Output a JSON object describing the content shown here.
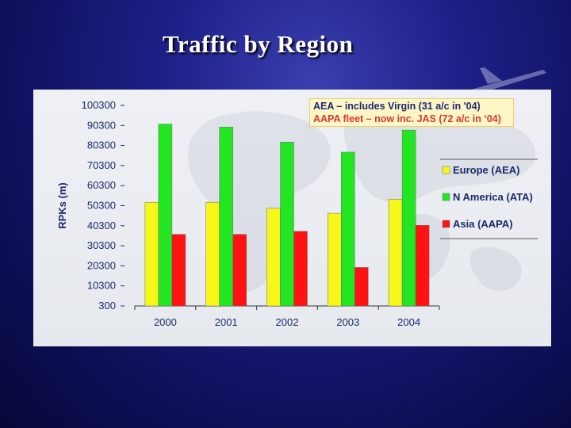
{
  "slide": {
    "title": "Traffic by Region"
  },
  "annotation": {
    "line1": "AEA – includes Virgin (31 a/c in '04)",
    "line2": "AAPA fleet – now inc. JAS (72 a/c in ‘04)"
  },
  "colors": {
    "Europe (AEA)": "#f7f71a",
    "N America (ATA)": "#22e622",
    "Asia (AAPA)": "#ff1212",
    "text": "#1b2a6b",
    "background": "#1d1f86"
  },
  "chart_data": {
    "type": "bar",
    "title": "",
    "xlabel": "",
    "ylabel": "RPKs (m)",
    "categories": [
      "2000",
      "2001",
      "2002",
      "2003",
      "2004"
    ],
    "series": [
      {
        "name": "Europe (AEA)",
        "values": [
          52000,
          52000,
          49000,
          46500,
          53500
        ]
      },
      {
        "name": "N America (ATA)",
        "values": [
          91000,
          89500,
          82000,
          77000,
          88000
        ]
      },
      {
        "name": "Asia (AAPA)",
        "values": [
          36000,
          36000,
          37500,
          19500,
          40500
        ]
      }
    ],
    "yticks": [
      "100300",
      "90300",
      "80300",
      "70300",
      "60300",
      "50300",
      "40300",
      "30300",
      "20300",
      "10300",
      "300"
    ],
    "ylim": [
      300,
      100300
    ],
    "grid": false,
    "legend": "right"
  }
}
